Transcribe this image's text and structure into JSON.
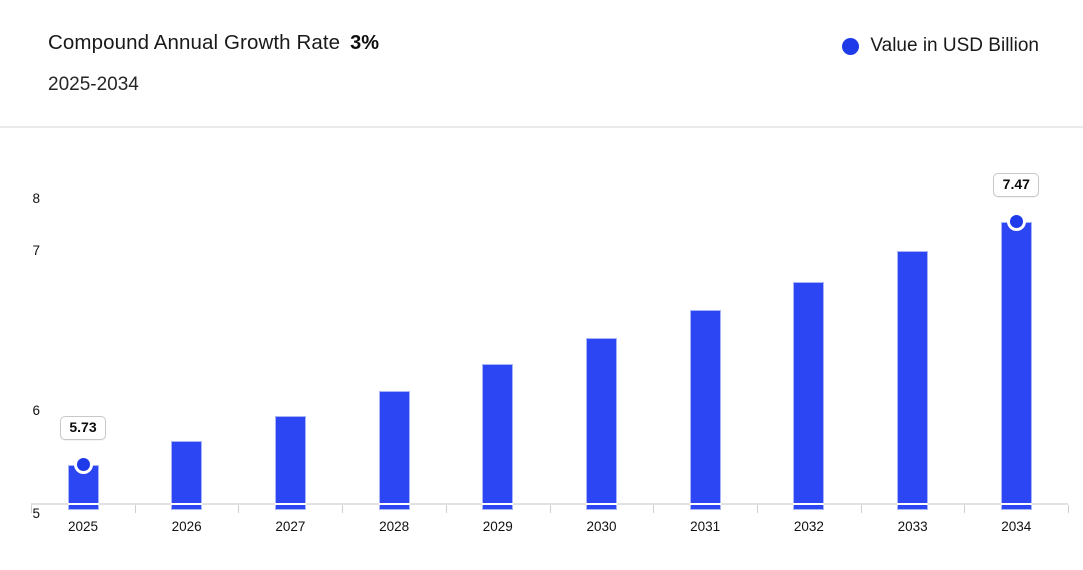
{
  "header": {
    "title": "Compound Annual Growth Rate",
    "cagr_value": "3%",
    "subtitle": "2025-2034"
  },
  "legend": {
    "label": "Value in USD Billion",
    "marker_color": "#1e3ae9"
  },
  "chart_data": {
    "type": "bar",
    "title": "Compound Annual Growth Rate 3%",
    "subtitle": "2025-2034",
    "categories": [
      "2025",
      "2026",
      "2027",
      "2028",
      "2029",
      "2030",
      "2031",
      "2032",
      "2033",
      "2034"
    ],
    "series": [
      {
        "name": "Value in USD Billion",
        "values": [
          5.73,
          5.9,
          6.08,
          6.26,
          6.45,
          6.64,
          6.84,
          7.04,
          7.26,
          7.47
        ]
      }
    ],
    "visible_value_labels": [
      {
        "category": "2025",
        "text": "5.73"
      },
      {
        "category": "2034",
        "text": "7.47"
      }
    ],
    "marker_categories": [
      "2025",
      "2034"
    ],
    "y_axis_tick_labels": [
      "8",
      "7",
      "6",
      "5"
    ],
    "ylim": [
      5,
      8
    ],
    "unit": "USD Billion",
    "grid": false,
    "legend_position": "top-right",
    "bar_color": "#2b46f2",
    "bar_edge_color": "#a7b4f8",
    "marker_color": "#1e3ae9"
  }
}
